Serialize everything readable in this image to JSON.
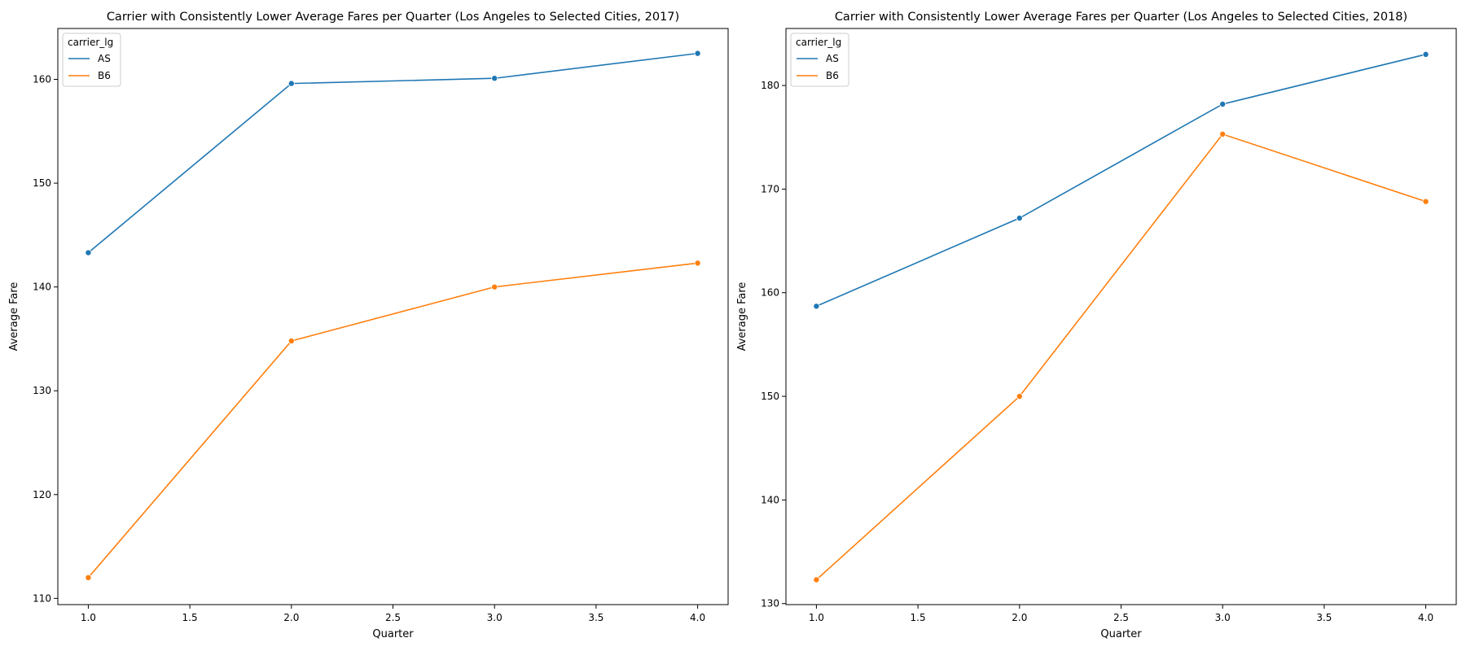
{
  "chart_data": [
    {
      "type": "line",
      "title": "Carrier with Consistently Lower Average Fares per Quarter (Los Angeles to Selected Cities, 2017)",
      "xlabel": "Quarter",
      "ylabel": "Average Fare",
      "xlim": [
        0.85,
        4.15
      ],
      "ylim": [
        109.4,
        164.9
      ],
      "xticks": [
        1.0,
        1.5,
        2.0,
        2.5,
        3.0,
        3.5,
        4.0
      ],
      "xtick_labels": [
        "1.0",
        "1.5",
        "2.0",
        "2.5",
        "3.0",
        "3.5",
        "4.0"
      ],
      "yticks": [
        110,
        120,
        130,
        140,
        150,
        160
      ],
      "ytick_labels": [
        "110",
        "120",
        "130",
        "140",
        "150",
        "160"
      ],
      "grid": false,
      "legend": {
        "title": "carrier_lg",
        "placement": "top-left"
      },
      "x": [
        1,
        2,
        3,
        4
      ],
      "series": [
        {
          "name": "AS",
          "color": "#1f77b4",
          "values": [
            143.3,
            159.6,
            160.1,
            162.5
          ]
        },
        {
          "name": "B6",
          "color": "#ff7f0e",
          "values": [
            112.0,
            134.8,
            140.0,
            142.3
          ]
        }
      ]
    },
    {
      "type": "line",
      "title": "Carrier with Consistently Lower Average Fares per Quarter (Los Angeles to Selected Cities, 2018)",
      "xlabel": "Quarter",
      "ylabel": "Average Fare",
      "xlim": [
        0.85,
        4.15
      ],
      "ylim": [
        129.9,
        185.5
      ],
      "xticks": [
        1.0,
        1.5,
        2.0,
        2.5,
        3.0,
        3.5,
        4.0
      ],
      "xtick_labels": [
        "1.0",
        "1.5",
        "2.0",
        "2.5",
        "3.0",
        "3.5",
        "4.0"
      ],
      "yticks": [
        130,
        140,
        150,
        160,
        170,
        180
      ],
      "ytick_labels": [
        "130",
        "140",
        "150",
        "160",
        "170",
        "180"
      ],
      "grid": false,
      "legend": {
        "title": "carrier_lg",
        "placement": "top-left"
      },
      "x": [
        1,
        2,
        3,
        4
      ],
      "series": [
        {
          "name": "AS",
          "color": "#1f77b4",
          "values": [
            158.7,
            167.2,
            178.2,
            183.0
          ]
        },
        {
          "name": "B6",
          "color": "#ff7f0e",
          "values": [
            132.3,
            150.0,
            175.3,
            168.8
          ]
        }
      ]
    }
  ]
}
